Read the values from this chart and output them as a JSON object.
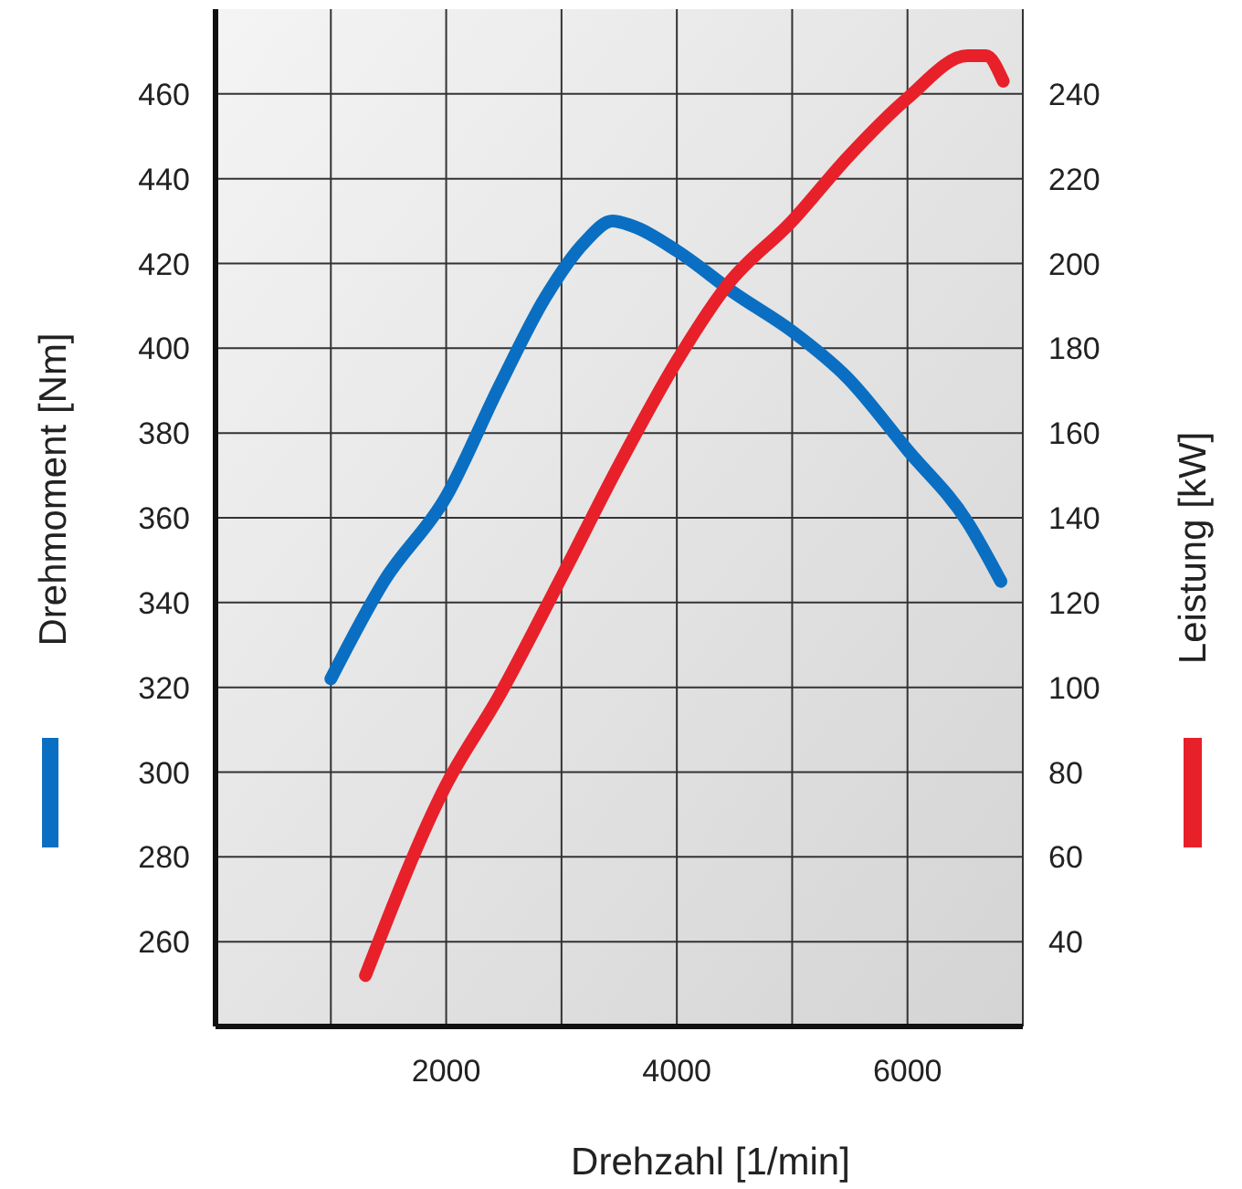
{
  "chart_data": {
    "type": "line",
    "xlabel": "Drehzahl [1/min]",
    "ylabel": "Drehmoment [Nm]",
    "y2label": "Leistung [kW]",
    "xlim": [
      0,
      7000
    ],
    "xticks": [
      {
        "value": 1000,
        "label": null
      },
      2000,
      {
        "value": 3000,
        "label": null
      },
      4000,
      {
        "value": 5000,
        "label": null
      },
      6000,
      {
        "value": 7000,
        "label": null
      }
    ],
    "ylim": [
      240,
      480
    ],
    "yticks": [
      260,
      280,
      300,
      320,
      340,
      360,
      380,
      400,
      420,
      440,
      460
    ],
    "y2lim": [
      20,
      260
    ],
    "y2ticks": [
      40,
      60,
      80,
      100,
      120,
      140,
      160,
      180,
      200,
      220,
      240
    ],
    "grid": true,
    "line_style": "solid",
    "marker": "none",
    "series": [
      {
        "color": "#0a6fc2",
        "x": [
          1000,
          1460,
          2000,
          2460,
          2860,
          3200,
          3440,
          3600,
          4000,
          4500,
          5000,
          5480,
          6000,
          6520,
          6810
        ],
        "values": [
          322,
          345,
          365,
          391,
          412,
          425,
          430,
          429,
          423,
          413,
          404,
          393,
          376,
          359,
          345
        ]
      },
      {
        "color": "#e8202a",
        "axis": "y2",
        "x": [
          1300,
          2000,
          2460,
          3000,
          3490,
          4000,
          4440,
          5000,
          5480,
          6000,
          6520,
          6680,
          6830
        ],
        "values": [
          32,
          77,
          98,
          126,
          152,
          177,
          195,
          210,
          225,
          239,
          249,
          249,
          243
        ]
      }
    ]
  }
}
